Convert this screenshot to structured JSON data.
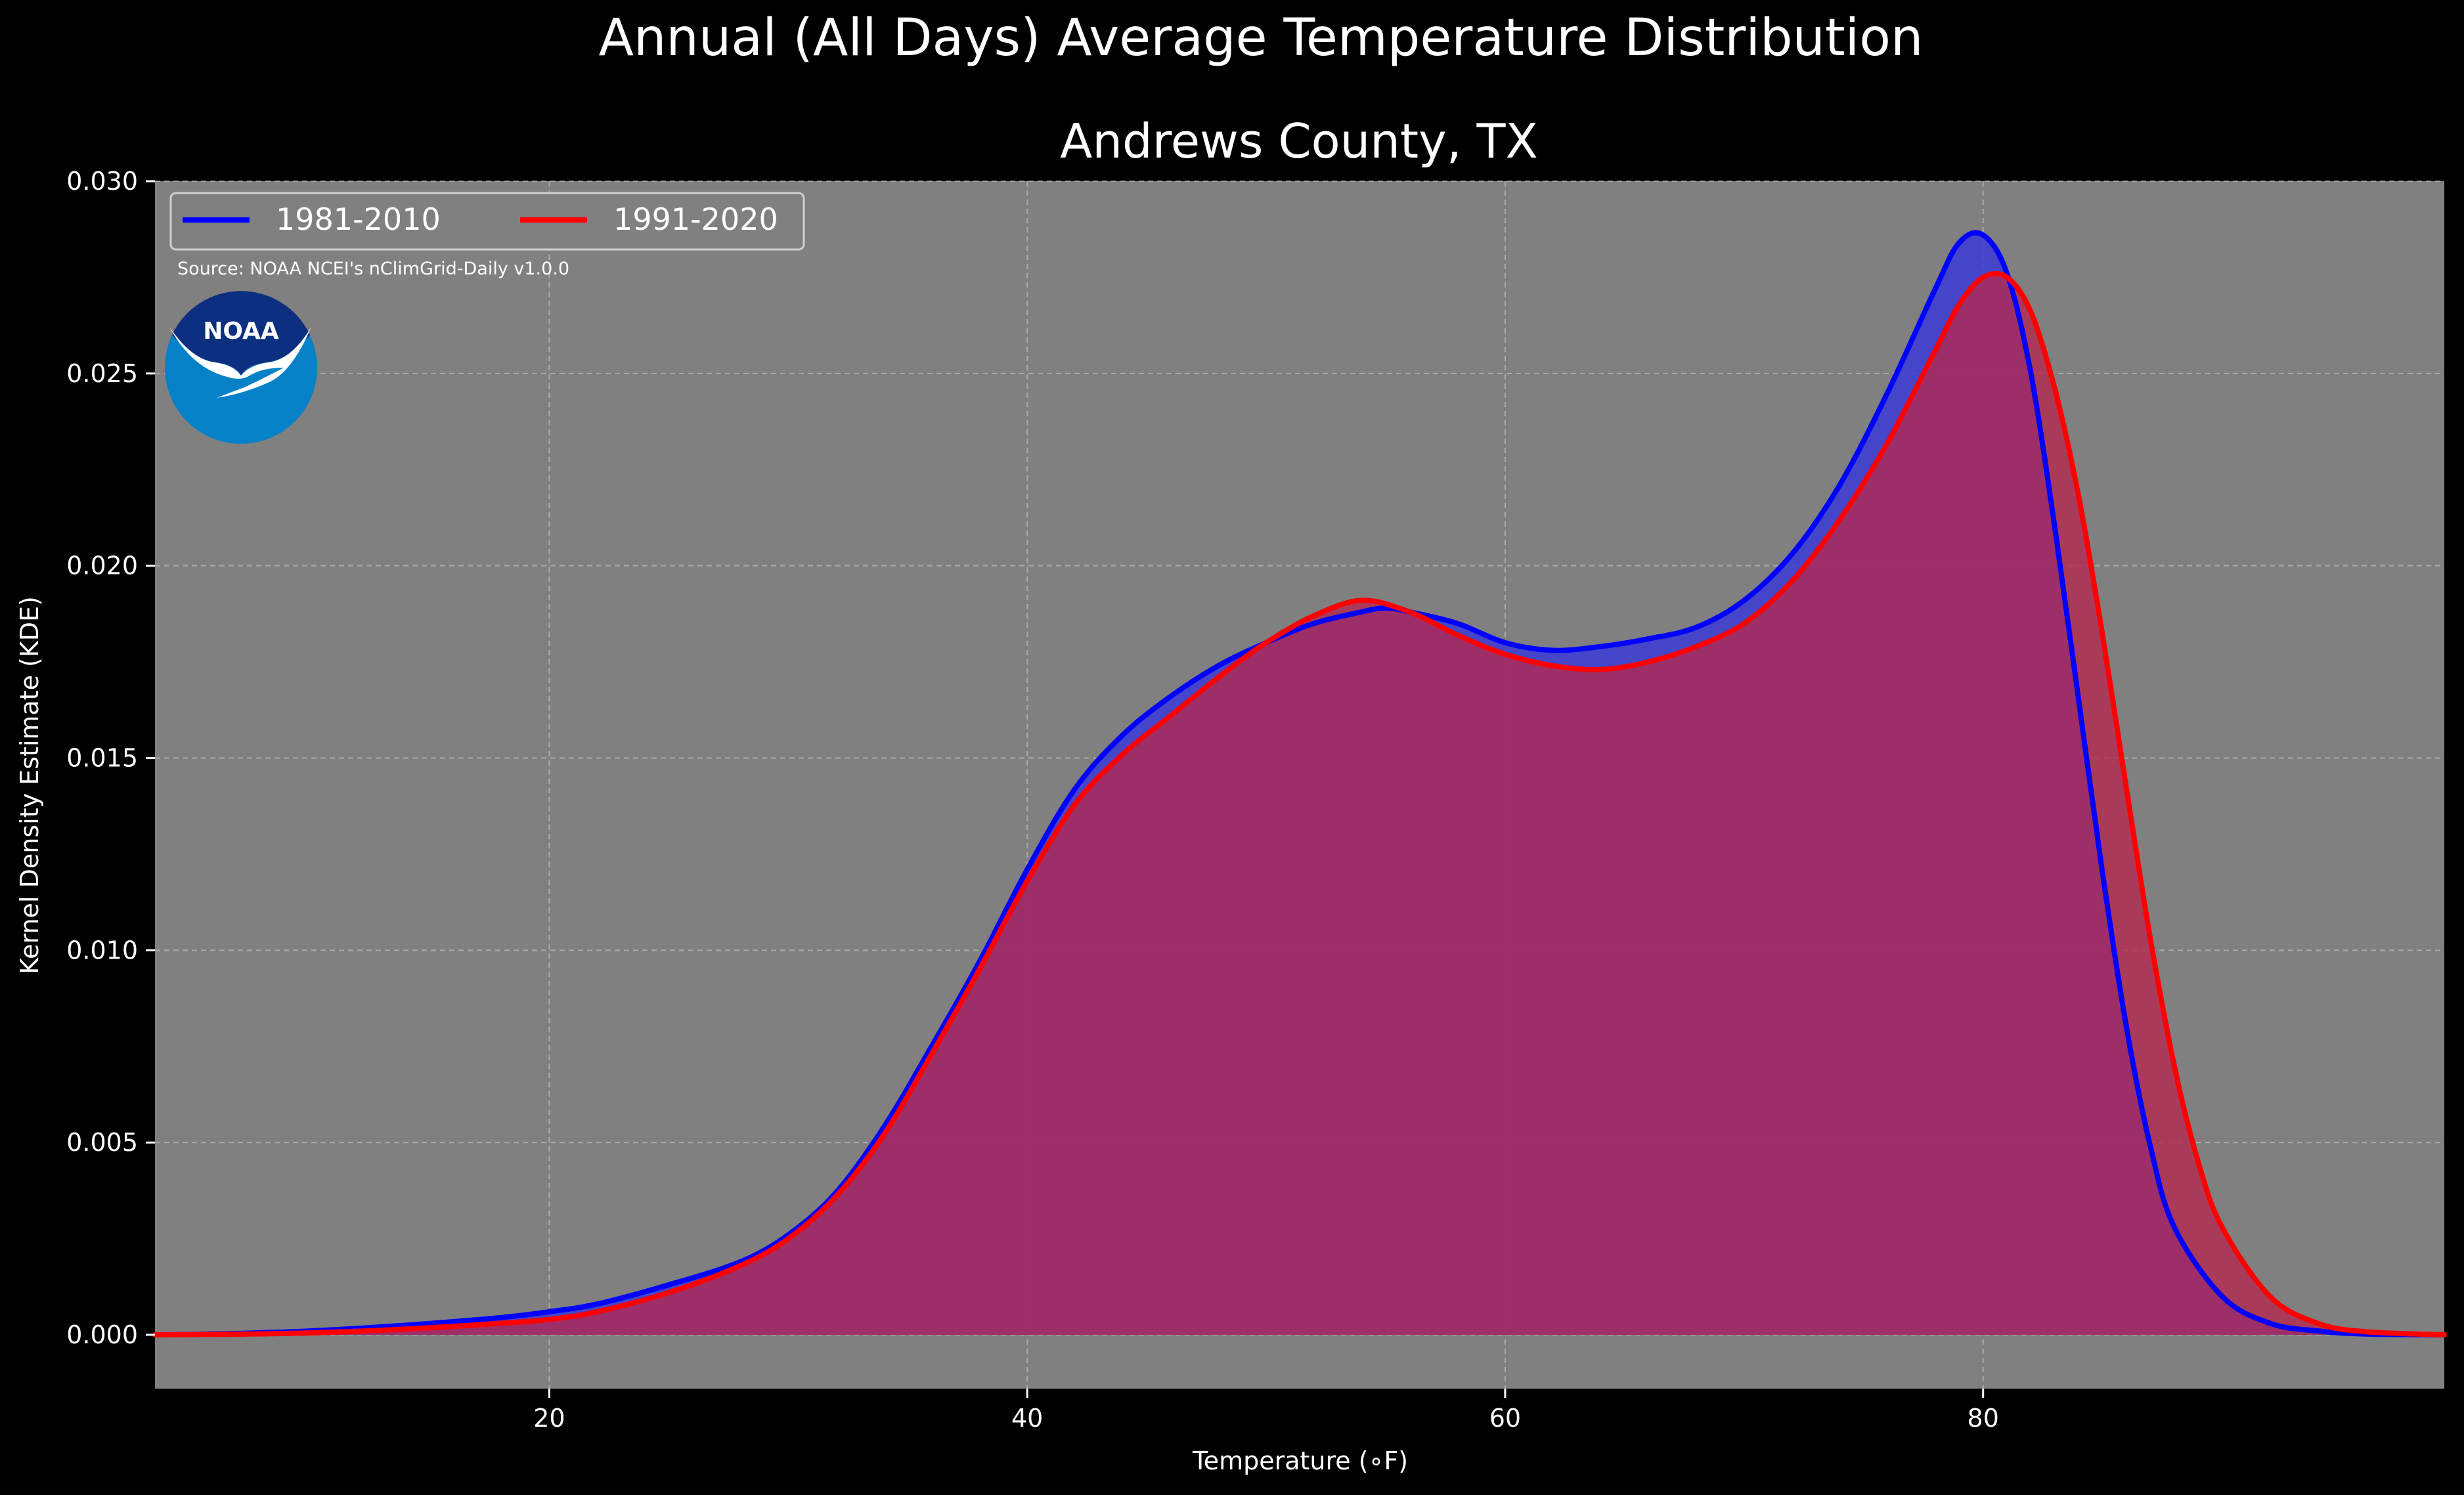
{
  "figure": {
    "suptitle": "Annual (All Days) Average Temperature Distribution",
    "source_note": "Source: NOAA NCEI's nClimGrid-Daily v1.0.0",
    "logo_text": "NOAA",
    "background": "#000000",
    "axes_face": "#808080"
  },
  "chart_data": {
    "type": "area",
    "title": "Andrews County, TX",
    "xlabel": "Temperature ($^\\circ$F)",
    "xlabel_display": "Temperature (∘F)",
    "ylabel": "Kernel Density Estimate (KDE)",
    "xlim": [
      3.5,
      99.3
    ],
    "ylim": [
      -0.0014,
      0.03
    ],
    "xticks": [
      20,
      40,
      60,
      80
    ],
    "xtick_labels": [
      "20",
      "40",
      "60",
      "80"
    ],
    "yticks": [
      0.0,
      0.005,
      0.01,
      0.015,
      0.02,
      0.025,
      0.03
    ],
    "ytick_labels": [
      "0.000",
      "0.005",
      "0.010",
      "0.015",
      "0.020",
      "0.025",
      "0.030"
    ],
    "grid": true,
    "legend_position": "top-left",
    "series": [
      {
        "name": "1981-2010",
        "color": "#0000ff",
        "fill": "#3b3bd6",
        "x": [
          3.5,
          6,
          10,
          14,
          18,
          20,
          22,
          25,
          28,
          30,
          32,
          34,
          36,
          38,
          40,
          42,
          44,
          46,
          48,
          50,
          52,
          54,
          55,
          56,
          58,
          60,
          62,
          64,
          66,
          68,
          70,
          72,
          74,
          76,
          78,
          79,
          80,
          81,
          82,
          83,
          84,
          85,
          86,
          87,
          88,
          90,
          92,
          94,
          96,
          99.3
        ],
        "y": [
          0.0,
          2e-05,
          0.0001,
          0.00025,
          0.00045,
          0.0006,
          0.0008,
          0.0013,
          0.0019,
          0.0026,
          0.0037,
          0.0054,
          0.0075,
          0.0097,
          0.0121,
          0.0142,
          0.0156,
          0.0166,
          0.0174,
          0.018,
          0.0185,
          0.0188,
          0.0189,
          0.0188,
          0.0185,
          0.018,
          0.0178,
          0.0179,
          0.0181,
          0.0184,
          0.0191,
          0.0203,
          0.0221,
          0.0245,
          0.0272,
          0.0284,
          0.0286,
          0.0276,
          0.025,
          0.021,
          0.0165,
          0.012,
          0.008,
          0.0049,
          0.0028,
          0.001,
          0.0003,
          0.0001,
          2e-05,
          0.0
        ]
      },
      {
        "name": "1991-2020",
        "color": "#ff0000",
        "fill": "#b4284f",
        "x": [
          3.5,
          6,
          10,
          14,
          18,
          20,
          22,
          25,
          28,
          30,
          32,
          34,
          36,
          38,
          40,
          42,
          44,
          46,
          48,
          50,
          52,
          54,
          56,
          58,
          60,
          62,
          64,
          66,
          68,
          70,
          72,
          74,
          76,
          78,
          79,
          80,
          81,
          82,
          83,
          84,
          85,
          86,
          87,
          88,
          89,
          90,
          92,
          94,
          96,
          99.3
        ],
        "y": [
          0.0,
          1e-05,
          5e-05,
          0.00015,
          0.0003,
          0.0004,
          0.0006,
          0.0011,
          0.0018,
          0.0025,
          0.0036,
          0.0052,
          0.0073,
          0.0095,
          0.0118,
          0.0138,
          0.0151,
          0.0161,
          0.0171,
          0.018,
          0.0187,
          0.0191,
          0.0188,
          0.0182,
          0.0177,
          0.0174,
          0.0173,
          0.0175,
          0.0179,
          0.0185,
          0.0196,
          0.0212,
          0.0232,
          0.0256,
          0.0268,
          0.0275,
          0.0275,
          0.0266,
          0.0246,
          0.0218,
          0.0182,
          0.0142,
          0.0103,
          0.007,
          0.0045,
          0.0028,
          0.001,
          0.0003,
          8e-05,
          0.0
        ]
      }
    ]
  }
}
